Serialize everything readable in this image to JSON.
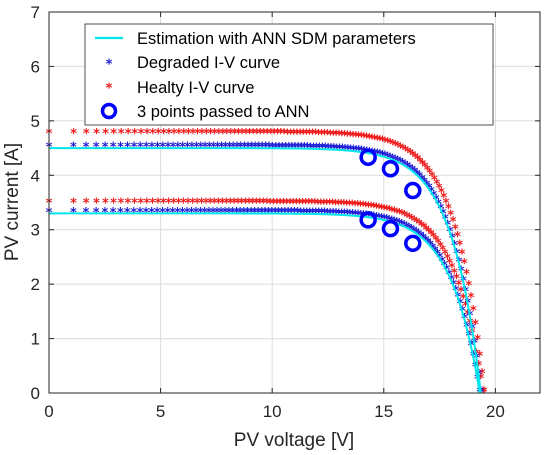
{
  "chart_data": {
    "type": "scatter",
    "title": "",
    "xlabel": "PV voltage [V]",
    "ylabel": "PV current [A]",
    "xlim": [
      0,
      22
    ],
    "ylim": [
      0,
      7
    ],
    "xticks": [
      0,
      5,
      10,
      15,
      20
    ],
    "yticks": [
      0,
      1,
      2,
      3,
      4,
      5,
      6,
      7
    ],
    "grid": true,
    "legend_position": "top",
    "series": [
      {
        "name": "Estimation with ANN SDM parameters",
        "kind": "line",
        "color": "#00e5ee",
        "curves": [
          {
            "isc": 4.5,
            "voc": 19.35,
            "pts": [
              [
                0,
                4.5
              ],
              [
                5,
                4.5
              ],
              [
                10,
                4.49
              ],
              [
                13,
                4.46
              ],
              [
                14.3,
                4.36
              ],
              [
                15.3,
                4.17
              ],
              [
                16.3,
                3.78
              ],
              [
                17,
                3.2
              ],
              [
                17.7,
                2.4
              ],
              [
                18.3,
                1.5
              ],
              [
                18.8,
                0.75
              ],
              [
                19.1,
                0.3
              ],
              [
                19.35,
                0
              ]
            ]
          },
          {
            "isc": 3.3,
            "voc": 19.3,
            "pts": [
              [
                0,
                3.3
              ],
              [
                5,
                3.3
              ],
              [
                10,
                3.29
              ],
              [
                13,
                3.26
              ],
              [
                14.3,
                3.18
              ],
              [
                15.3,
                3.02
              ],
              [
                16.3,
                2.72
              ],
              [
                17,
                2.3
              ],
              [
                17.7,
                1.7
              ],
              [
                18.3,
                1.05
              ],
              [
                18.8,
                0.5
              ],
              [
                19.1,
                0.18
              ],
              [
                19.3,
                0
              ]
            ]
          }
        ]
      },
      {
        "name": "Degraded I-V curve",
        "kind": "star",
        "color": "#1f1fd6",
        "curves": [
          {
            "isc": 4.5,
            "voc": 19.35,
            "pts": [
              [
                0,
                4.5
              ],
              [
                5,
                4.5
              ],
              [
                10,
                4.49
              ],
              [
                13,
                4.46
              ],
              [
                14.3,
                4.36
              ],
              [
                15.3,
                4.17
              ],
              [
                16.3,
                3.78
              ],
              [
                17,
                3.2
              ],
              [
                17.7,
                2.4
              ],
              [
                18.3,
                1.5
              ],
              [
                18.8,
                0.75
              ],
              [
                19.1,
                0.3
              ],
              [
                19.35,
                0
              ]
            ]
          },
          {
            "isc": 3.3,
            "voc": 19.3,
            "pts": [
              [
                0,
                3.3
              ],
              [
                5,
                3.3
              ],
              [
                10,
                3.29
              ],
              [
                13,
                3.26
              ],
              [
                14.3,
                3.18
              ],
              [
                15.3,
                3.02
              ],
              [
                16.3,
                2.72
              ],
              [
                17,
                2.3
              ],
              [
                17.7,
                1.7
              ],
              [
                18.3,
                1.05
              ],
              [
                18.8,
                0.5
              ],
              [
                19.1,
                0.18
              ],
              [
                19.3,
                0
              ]
            ]
          }
        ]
      },
      {
        "name": "Healty I-V curve",
        "kind": "star",
        "color": "#ee1c1c",
        "curves": [
          {
            "isc": 4.75,
            "voc": 19.5,
            "pts": [
              [
                0,
                4.75
              ],
              [
                5,
                4.75
              ],
              [
                10,
                4.74
              ],
              [
                13,
                4.71
              ],
              [
                14.3,
                4.62
              ],
              [
                15.3,
                4.44
              ],
              [
                16.3,
                4.06
              ],
              [
                17,
                3.5
              ],
              [
                17.7,
                2.72
              ],
              [
                18.3,
                1.82
              ],
              [
                18.8,
                1.0
              ],
              [
                19.2,
                0.38
              ],
              [
                19.5,
                0
              ]
            ]
          },
          {
            "isc": 3.47,
            "voc": 19.45,
            "pts": [
              [
                0,
                3.47
              ],
              [
                5,
                3.47
              ],
              [
                10,
                3.46
              ],
              [
                13,
                3.43
              ],
              [
                14.3,
                3.36
              ],
              [
                15.3,
                3.21
              ],
              [
                16.3,
                2.92
              ],
              [
                17,
                2.5
              ],
              [
                17.7,
                1.9
              ],
              [
                18.3,
                1.2
              ],
              [
                18.8,
                0.62
              ],
              [
                19.2,
                0.2
              ],
              [
                19.45,
                0
              ]
            ]
          }
        ]
      },
      {
        "name": "3 points passed to ANN",
        "kind": "circle",
        "color": "#0000ff",
        "points": [
          [
            14.3,
            4.33
          ],
          [
            15.3,
            4.12
          ],
          [
            16.3,
            3.72
          ],
          [
            14.3,
            3.18
          ],
          [
            15.3,
            3.02
          ],
          [
            16.3,
            2.75
          ]
        ]
      }
    ]
  }
}
